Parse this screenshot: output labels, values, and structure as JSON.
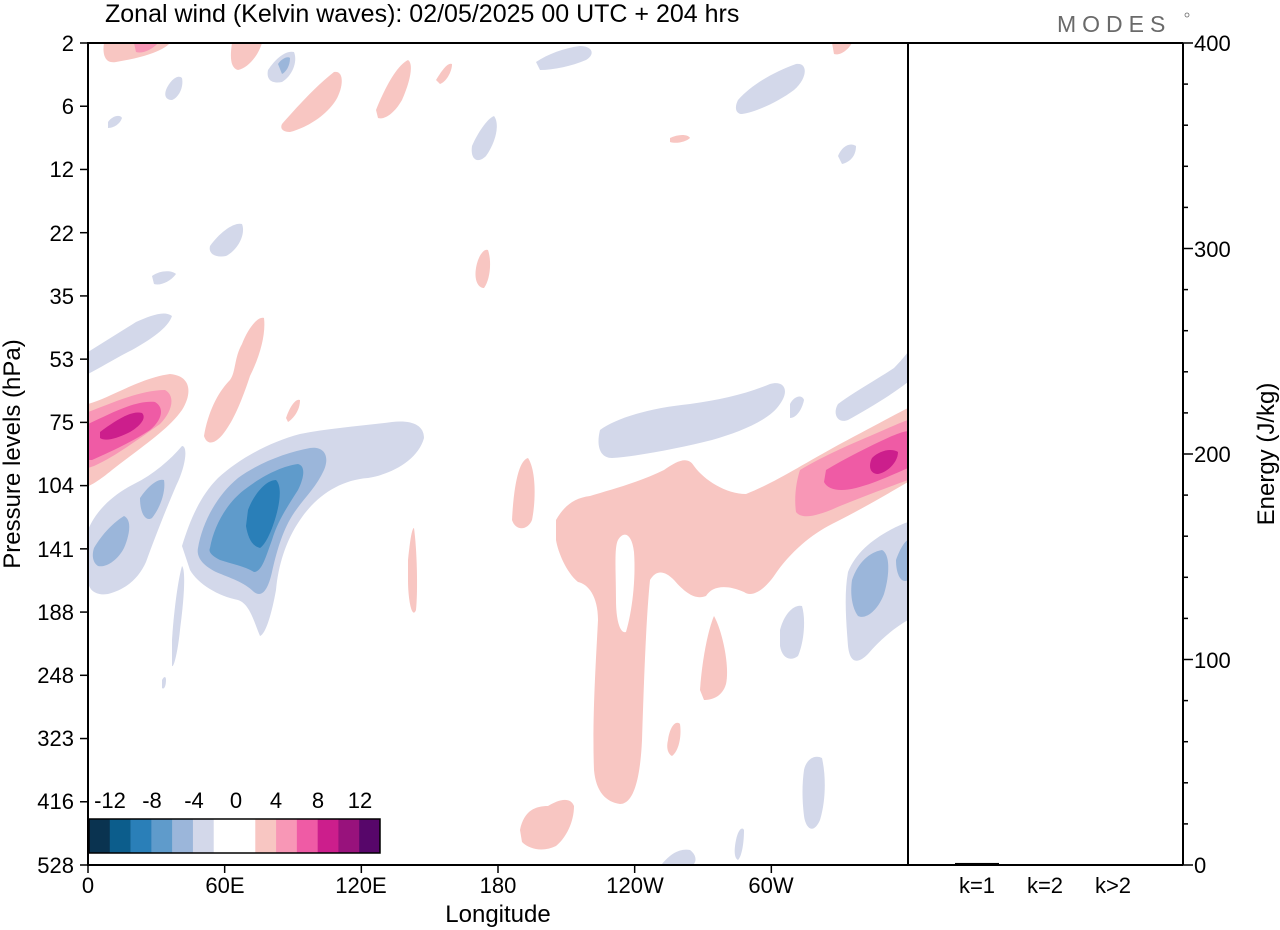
{
  "chart_data": [
    {
      "type": "heatmap",
      "title": "Zonal wind (Kelvin waves):  02/05/2025  00 UTC  + 204 hrs",
      "xlabel": "Longitude",
      "ylabel": "Pressure levels (hPa)",
      "x_ticks": [
        "0",
        "60E",
        "120E",
        "180",
        "120W",
        "60W"
      ],
      "y_ticks": [
        "2",
        "6",
        "12",
        "22",
        "35",
        "53",
        "75",
        "104",
        "141",
        "188",
        "248",
        "323",
        "416",
        "528"
      ],
      "colorbar": {
        "labels": [
          "-12",
          "-8",
          "-4",
          "0",
          "4",
          "8",
          "12"
        ],
        "colors": [
          "#0a3350",
          "#0c5d8c",
          "#2a7fb8",
          "#5f9bcb",
          "#9bb6da",
          "#d3d8ea",
          "#ffffff",
          "#ffffff",
          "#f8c6c2",
          "#f897b6",
          "#ef5ba5",
          "#cc1e8c",
          "#98127c",
          "#57066a"
        ]
      },
      "features": [
        {
          "sign": "positive",
          "peak": 8,
          "lon_range": [
            "0",
            "40E"
          ],
          "levels": "53-104 hPa"
        },
        {
          "sign": "negative",
          "peak": -10,
          "lon_range": [
            "50E",
            "90E"
          ],
          "levels": "75-188 hPa"
        },
        {
          "sign": "positive",
          "peak": 4,
          "lon_range": [
            "180",
            "80W"
          ],
          "levels": "104-416 hPa"
        },
        {
          "sign": "positive",
          "peak": 10,
          "lon_range": [
            "70W",
            "0"
          ],
          "levels": "75-141 hPa"
        },
        {
          "sign": "negative",
          "peak": -6,
          "lon_range": [
            "40W",
            "0"
          ],
          "levels": "141-248 hPa"
        },
        {
          "sign": "negative",
          "peak": -4,
          "lon_range": [
            "140W",
            "60W"
          ],
          "levels": "53-104 hPa"
        }
      ]
    },
    {
      "type": "bar",
      "ylabel": "Energy (J/kg)",
      "categories": [
        "k=1",
        "k=2",
        "k>2"
      ],
      "values": [
        1,
        0,
        0
      ],
      "ylim": [
        0,
        400
      ],
      "y_ticks": [
        "0",
        "100",
        "200",
        "300",
        "400"
      ]
    }
  ],
  "logo_text": "MODES",
  "colors": {
    "pos1": "#f8c6c2",
    "pos2": "#f897b6",
    "pos3": "#ef5ba5",
    "pos4": "#cc1e8c",
    "neg1": "#d3d8ea",
    "neg2": "#9bb6da",
    "neg3": "#5f9bcb",
    "neg4": "#2a7fb8"
  }
}
